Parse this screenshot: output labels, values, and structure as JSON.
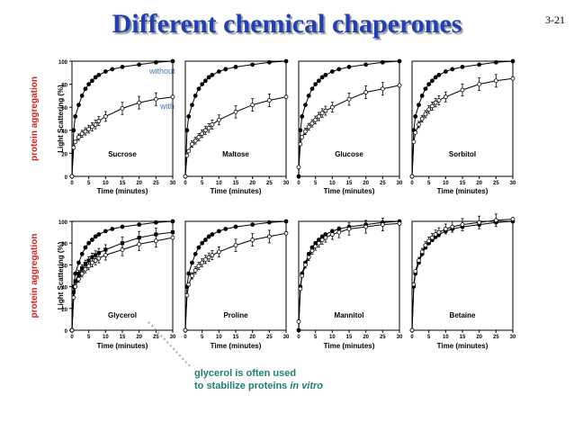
{
  "slide": {
    "title": "Different chemical chaperones",
    "number": "3-21",
    "legend_without": "without",
    "legend_with": "with",
    "side_label": "protein aggregation",
    "note_line1": "glycerol is often used",
    "note_line2": "to stabilize proteins",
    "note_italic": "in vitro"
  },
  "colors": {
    "title": "#1f3fb3",
    "annotation_blue": "#4a73c9",
    "side_label": "#d11f1f",
    "note": "#1f7f74"
  },
  "chart_data": {
    "type": "line",
    "ylabel": "Light Scattering (%)",
    "xlabel": "Time (minutes)",
    "xlim": [
      0,
      30
    ],
    "ylim": [
      0,
      100
    ],
    "xticks": [
      0,
      5,
      10,
      15,
      20,
      25,
      30
    ],
    "yticks": [
      0,
      20,
      40,
      60,
      80,
      100
    ],
    "panels": [
      {
        "name": "Sucrose",
        "series": [
          {
            "x": [
              0,
              0.5,
              1,
              2,
              3,
              4,
              5,
              6,
              7,
              8,
              10,
              12,
              15,
              20,
              25,
              30
            ],
            "y": [
              0,
              40,
              52,
              62,
              70,
              76,
              80,
              83,
              86,
              88,
              91,
              93,
              95,
              97,
              99,
              100
            ]
          },
          {
            "x": [
              0,
              0.5,
              1,
              2,
              3,
              4,
              5,
              6,
              7,
              8,
              10,
              15,
              20,
              25,
              30
            ],
            "y": [
              0,
              25,
              30,
              34,
              37,
              39,
              41,
              43,
              45,
              48,
              52,
              59,
              64,
              67,
              69
            ]
          }
        ]
      },
      {
        "name": "Maltose",
        "series": [
          {
            "x": [
              0,
              0.5,
              1,
              2,
              3,
              4,
              5,
              6,
              7,
              8,
              10,
              12,
              15,
              20,
              25,
              30
            ],
            "y": [
              0,
              40,
              52,
              62,
              70,
              76,
              80,
              83,
              86,
              88,
              91,
              93,
              95,
              97,
              99,
              100
            ]
          },
          {
            "x": [
              0,
              0.5,
              1,
              2,
              3,
              4,
              5,
              6,
              7,
              8,
              10,
              15,
              20,
              25,
              30
            ],
            "y": [
              0,
              18,
              22,
              28,
              31,
              34,
              37,
              40,
              42,
              45,
              49,
              56,
              62,
              66,
              69
            ]
          }
        ]
      },
      {
        "name": "Glucose",
        "series": [
          {
            "x": [
              0,
              0.5,
              1,
              2,
              3,
              4,
              5,
              6,
              7,
              8,
              10,
              12,
              15,
              20,
              25,
              30
            ],
            "y": [
              0,
              40,
              52,
              62,
              70,
              76,
              80,
              83,
              86,
              88,
              91,
              93,
              95,
              97,
              99,
              100
            ]
          },
          {
            "x": [
              0,
              0.5,
              1,
              2,
              3,
              4,
              5,
              6,
              7,
              8,
              10,
              15,
              20,
              25,
              30
            ],
            "y": [
              8,
              28,
              34,
              39,
              43,
              46,
              49,
              52,
              55,
              57,
              60,
              67,
              73,
              76,
              79
            ]
          }
        ]
      },
      {
        "name": "Sorbitol",
        "series": [
          {
            "x": [
              0,
              0.5,
              1,
              2,
              3,
              4,
              5,
              6,
              7,
              8,
              10,
              12,
              15,
              20,
              25,
              30
            ],
            "y": [
              0,
              40,
              52,
              62,
              70,
              76,
              80,
              83,
              86,
              88,
              91,
              93,
              95,
              97,
              99,
              100
            ]
          },
          {
            "x": [
              0,
              0.5,
              1,
              2,
              3,
              4,
              5,
              6,
              7,
              8,
              10,
              15,
              20,
              25,
              30
            ],
            "y": [
              0,
              30,
              38,
              45,
              50,
              54,
              58,
              61,
              64,
              66,
              69,
              75,
              80,
              83,
              85
            ]
          }
        ]
      },
      {
        "name": "Glycerol",
        "series": [
          {
            "x": [
              0,
              0.5,
              1,
              2,
              3,
              4,
              5,
              6,
              7,
              8,
              10,
              12,
              15,
              20,
              25,
              30
            ],
            "y": [
              0,
              40,
              52,
              62,
              70,
              76,
              80,
              83,
              86,
              88,
              91,
              93,
              95,
              97,
              99,
              100
            ]
          },
          {
            "x": [
              0,
              0.5,
              1,
              2,
              3,
              4,
              5,
              6,
              7,
              8,
              10,
              15,
              20,
              25,
              30
            ],
            "y": [
              0,
              35,
              45,
              52,
              57,
              61,
              64,
              67,
              69,
              71,
              74,
              80,
              85,
              88,
              90
            ]
          },
          {
            "x": [
              0,
              0.5,
              1,
              2,
              3,
              4,
              5,
              6,
              7,
              8,
              10,
              15,
              20,
              25,
              30
            ],
            "y": [
              0,
              30,
              40,
              47,
              52,
              56,
              59,
              62,
              64,
              66,
              69,
              74,
              79,
              82,
              85
            ]
          }
        ]
      },
      {
        "name": "Proline",
        "series": [
          {
            "x": [
              0,
              0.5,
              1,
              2,
              3,
              4,
              5,
              6,
              7,
              8,
              10,
              12,
              15,
              20,
              25,
              30
            ],
            "y": [
              0,
              40,
              52,
              62,
              70,
              76,
              80,
              83,
              86,
              88,
              91,
              93,
              95,
              97,
              99,
              100
            ]
          },
          {
            "x": [
              0,
              0.5,
              1,
              2,
              3,
              4,
              5,
              6,
              7,
              8,
              10,
              15,
              20,
              25,
              30
            ],
            "y": [
              0,
              32,
              42,
              50,
              55,
              59,
              62,
              65,
              67,
              69,
              72,
              78,
              83,
              86,
              89
            ]
          }
        ]
      },
      {
        "name": "Mannitol",
        "series": [
          {
            "x": [
              0,
              0.5,
              1,
              2,
              3,
              4,
              5,
              6,
              7,
              8,
              10,
              12,
              15,
              20,
              25,
              30
            ],
            "y": [
              0,
              40,
              52,
              62,
              70,
              76,
              80,
              83,
              86,
              88,
              91,
              93,
              95,
              97,
              99,
              100
            ]
          },
          {
            "x": [
              0,
              0.5,
              1,
              2,
              3,
              4,
              5,
              6,
              7,
              8,
              10,
              12,
              15,
              20,
              25,
              30
            ],
            "y": [
              8,
              38,
              50,
              60,
              67,
              73,
              77,
              80,
              83,
              85,
              88,
              90,
              93,
              95,
              97,
              98
            ]
          }
        ]
      },
      {
        "name": "Betaine",
        "series": [
          {
            "x": [
              0,
              0.5,
              1,
              2,
              3,
              4,
              5,
              6,
              7,
              8,
              10,
              12,
              15,
              20,
              25,
              30
            ],
            "y": [
              0,
              40,
              52,
              62,
              70,
              76,
              80,
              83,
              86,
              88,
              91,
              93,
              95,
              97,
              99,
              100
            ]
          },
          {
            "x": [
              0,
              0.5,
              1,
              2,
              3,
              4,
              5,
              6,
              7,
              8,
              10,
              12,
              15,
              20,
              25,
              30
            ],
            "y": [
              0,
              42,
              54,
              64,
              72,
              78,
              82,
              85,
              88,
              90,
              93,
              95,
              97,
              99,
              101,
              102
            ]
          }
        ]
      }
    ]
  }
}
